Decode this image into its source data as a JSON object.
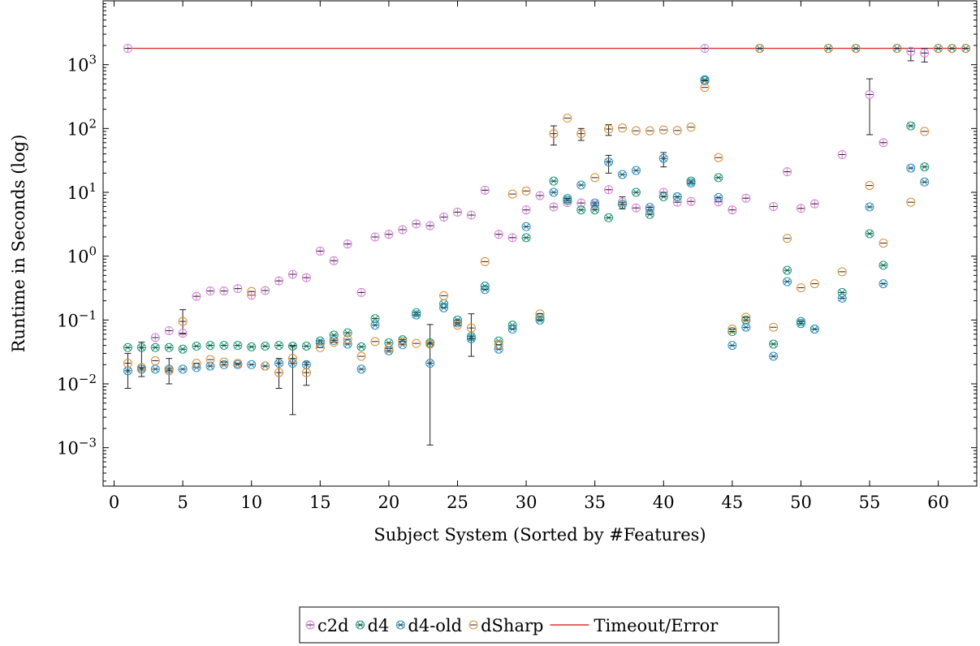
{
  "chart_data": {
    "type": "scatter",
    "xlabel": "Subject System (Sorted by #Features)",
    "ylabel": "Runtime in Seconds (log)",
    "y_scale": "log",
    "xlim": [
      -0.8,
      62.8
    ],
    "ylim": [
      0.00025,
      10000
    ],
    "x_ticks": [
      0,
      5,
      10,
      15,
      20,
      25,
      30,
      35,
      40,
      45,
      50,
      55,
      60
    ],
    "x_tick_labels": [
      "0",
      "5",
      "10",
      "15",
      "20",
      "25",
      "30",
      "35",
      "40",
      "45",
      "50",
      "55",
      "60"
    ],
    "y_ticks": [
      0.001,
      0.01,
      0.1,
      1,
      10,
      100,
      1000
    ],
    "y_tick_labels": [
      [
        "10",
        "−3"
      ],
      [
        "10",
        "−2"
      ],
      [
        "10",
        "−1"
      ],
      [
        "10",
        "0"
      ],
      [
        "10",
        "1"
      ],
      [
        "10",
        "2"
      ],
      [
        "10",
        "3"
      ]
    ],
    "legend": {
      "placement": "below"
    },
    "colors": {
      "c2d": "#d580d6",
      "d4": "#1a9a78",
      "d4-old": "#2a8fc0",
      "dSharp": "#e08a2e",
      "timeout": "#e03030",
      "errorbar": "#000000"
    },
    "timeout": {
      "name": "Timeout/Error",
      "value": 1800
    },
    "series": [
      {
        "name": "c2d",
        "marker": "oplus",
        "points": [
          [
            1,
            1800
          ],
          [
            3,
            0.053
          ],
          [
            4,
            0.068
          ],
          [
            5,
            0.062
          ],
          [
            6,
            0.235
          ],
          [
            7,
            0.285
          ],
          [
            8,
            0.285
          ],
          [
            9,
            0.31
          ],
          [
            10,
            0.245
          ],
          [
            11,
            0.29
          ],
          [
            12,
            0.41
          ],
          [
            13,
            0.52
          ],
          [
            14,
            0.46
          ],
          [
            15,
            1.2
          ],
          [
            16,
            0.85
          ],
          [
            17,
            1.55
          ],
          [
            18,
            0.27
          ],
          [
            19,
            2.0
          ],
          [
            20,
            2.2
          ],
          [
            21,
            2.6
          ],
          [
            22,
            3.2
          ],
          [
            23,
            3.0
          ],
          [
            24,
            4.1
          ],
          [
            25,
            4.9
          ],
          [
            26,
            4.4
          ],
          [
            27,
            10.8
          ],
          [
            28,
            2.2
          ],
          [
            29,
            1.95
          ],
          [
            30,
            5.3
          ],
          [
            31,
            8.9
          ],
          [
            32,
            5.9
          ],
          [
            33,
            6.9
          ],
          [
            34,
            6.8
          ],
          [
            35,
            6.3
          ],
          [
            36,
            11
          ],
          [
            37,
            7.0
          ],
          [
            38,
            5.7
          ],
          [
            39,
            5.3
          ],
          [
            40,
            10
          ],
          [
            41,
            7.0
          ],
          [
            42,
            7.2
          ],
          [
            43,
            1800
          ],
          [
            44,
            7.1
          ],
          [
            45,
            5.3
          ],
          [
            46,
            8.1
          ],
          [
            48,
            6.0
          ],
          [
            49,
            21
          ],
          [
            50,
            5.6
          ],
          [
            51,
            6.6
          ],
          [
            53,
            39
          ],
          [
            55,
            340
          ],
          [
            56,
            60
          ],
          [
            58,
            1620
          ],
          [
            59,
            1520
          ]
        ],
        "errors": [
          [
            55,
            80,
            600
          ],
          [
            58,
            1150,
            1800
          ],
          [
            59,
            1100,
            1800
          ]
        ]
      },
      {
        "name": "d4",
        "marker": "otimes",
        "points": [
          [
            1,
            0.037
          ],
          [
            2,
            0.037
          ],
          [
            3,
            0.037
          ],
          [
            4,
            0.037
          ],
          [
            5,
            0.035
          ],
          [
            6,
            0.039
          ],
          [
            7,
            0.04
          ],
          [
            8,
            0.04
          ],
          [
            9,
            0.04
          ],
          [
            10,
            0.038
          ],
          [
            11,
            0.039
          ],
          [
            12,
            0.04
          ],
          [
            13,
            0.039
          ],
          [
            14,
            0.039
          ],
          [
            15,
            0.047
          ],
          [
            16,
            0.058
          ],
          [
            17,
            0.063
          ],
          [
            18,
            0.038
          ],
          [
            19,
            0.105
          ],
          [
            20,
            0.044
          ],
          [
            21,
            0.049
          ],
          [
            22,
            0.13
          ],
          [
            23,
            0.044
          ],
          [
            24,
            0.18
          ],
          [
            25,
            0.1
          ],
          [
            26,
            0.055
          ],
          [
            27,
            0.34
          ],
          [
            28,
            0.047
          ],
          [
            29,
            0.083
          ],
          [
            30,
            1.95
          ],
          [
            31,
            0.11
          ],
          [
            32,
            15
          ],
          [
            33,
            7.5
          ],
          [
            34,
            5.3
          ],
          [
            35,
            5.3
          ],
          [
            36,
            4.0
          ],
          [
            37,
            6.5
          ],
          [
            38,
            10
          ],
          [
            39,
            4.5
          ],
          [
            40,
            8.5
          ],
          [
            41,
            8.5
          ],
          [
            42,
            15
          ],
          [
            43,
            580
          ],
          [
            44,
            17
          ],
          [
            45,
            0.066
          ],
          [
            46,
            0.1
          ],
          [
            47,
            1800
          ],
          [
            48,
            0.042
          ],
          [
            49,
            0.6
          ],
          [
            50,
            0.088
          ],
          [
            51,
            0.072
          ],
          [
            52,
            1800
          ],
          [
            53,
            0.27
          ],
          [
            54,
            1800
          ],
          [
            55,
            2.25
          ],
          [
            56,
            0.72
          ],
          [
            57,
            1800
          ],
          [
            58,
            110
          ],
          [
            59,
            25
          ],
          [
            60,
            1800
          ],
          [
            61,
            1800
          ],
          [
            62,
            1800
          ]
        ],
        "errors": [
          [
            23,
            0.0011,
            0.085
          ],
          [
            37,
            5.5,
            8.5
          ]
        ]
      },
      {
        "name": "d4-old",
        "marker": "otimes",
        "points": [
          [
            1,
            0.016
          ],
          [
            2,
            0.017
          ],
          [
            3,
            0.017
          ],
          [
            4,
            0.017
          ],
          [
            5,
            0.017
          ],
          [
            6,
            0.018
          ],
          [
            7,
            0.019
          ],
          [
            8,
            0.02
          ],
          [
            9,
            0.02
          ],
          [
            10,
            0.02
          ],
          [
            11,
            0.019
          ],
          [
            12,
            0.021
          ],
          [
            13,
            0.021
          ],
          [
            14,
            0.02
          ],
          [
            15,
            0.043
          ],
          [
            16,
            0.048
          ],
          [
            17,
            0.042
          ],
          [
            18,
            0.017
          ],
          [
            19,
            0.083
          ],
          [
            20,
            0.033
          ],
          [
            21,
            0.041
          ],
          [
            22,
            0.12
          ],
          [
            23,
            0.021
          ],
          [
            24,
            0.155
          ],
          [
            25,
            0.09
          ],
          [
            26,
            0.051
          ],
          [
            27,
            0.3
          ],
          [
            28,
            0.035
          ],
          [
            29,
            0.072
          ],
          [
            30,
            2.9
          ],
          [
            31,
            0.1
          ],
          [
            32,
            10
          ],
          [
            33,
            8.0
          ],
          [
            34,
            13
          ],
          [
            35,
            6.8
          ],
          [
            36,
            30
          ],
          [
            37,
            19
          ],
          [
            38,
            22
          ],
          [
            39,
            5.8
          ],
          [
            40,
            34
          ],
          [
            41,
            8.5
          ],
          [
            42,
            14
          ],
          [
            43,
            560
          ],
          [
            44,
            8.3
          ],
          [
            45,
            0.04
          ],
          [
            46,
            0.077
          ],
          [
            47,
            1800
          ],
          [
            48,
            0.027
          ],
          [
            49,
            0.4
          ],
          [
            50,
            0.095
          ],
          [
            51,
            0.072
          ],
          [
            52,
            1800
          ],
          [
            53,
            0.22
          ],
          [
            54,
            1800
          ],
          [
            55,
            5.9
          ],
          [
            56,
            0.37
          ],
          [
            57,
            1800
          ],
          [
            58,
            24
          ],
          [
            59,
            14.5
          ],
          [
            60,
            1800
          ],
          [
            61,
            1800
          ],
          [
            62,
            1800
          ]
        ],
        "errors": [
          [
            36,
            20,
            38
          ],
          [
            40,
            25,
            42
          ]
        ]
      },
      {
        "name": "dSharp",
        "marker": "circle",
        "points": [
          [
            1,
            0.021
          ],
          [
            2,
            0.018
          ],
          [
            3,
            0.023
          ],
          [
            4,
            0.016
          ],
          [
            5,
            0.095
          ],
          [
            6,
            0.021
          ],
          [
            7,
            0.024
          ],
          [
            8,
            0.022
          ],
          [
            9,
            0.021
          ],
          [
            10,
            0.28
          ],
          [
            11,
            0.019
          ],
          [
            12,
            0.015
          ],
          [
            13,
            0.025
          ],
          [
            14,
            0.015
          ],
          [
            15,
            0.037
          ],
          [
            16,
            0.045
          ],
          [
            17,
            0.05
          ],
          [
            18,
            0.027
          ],
          [
            19,
            0.046
          ],
          [
            20,
            0.036
          ],
          [
            21,
            0.046
          ],
          [
            22,
            0.043
          ],
          [
            23,
            0.042
          ],
          [
            24,
            0.24
          ],
          [
            25,
            0.083
          ],
          [
            26,
            0.075
          ],
          [
            27,
            0.82
          ],
          [
            28,
            0.041
          ],
          [
            29,
            9.4
          ],
          [
            30,
            10.5
          ],
          [
            31,
            0.125
          ],
          [
            32,
            83
          ],
          [
            33,
            145
          ],
          [
            34,
            83
          ],
          [
            35,
            17
          ],
          [
            36,
            98
          ],
          [
            37,
            102
          ],
          [
            38,
            92
          ],
          [
            39,
            92
          ],
          [
            40,
            95
          ],
          [
            41,
            93
          ],
          [
            42,
            105
          ],
          [
            43,
            440
          ],
          [
            44,
            35
          ],
          [
            45,
            0.072
          ],
          [
            46,
            0.11
          ],
          [
            47,
            1800
          ],
          [
            48,
            0.077
          ],
          [
            49,
            1.9
          ],
          [
            50,
            0.32
          ],
          [
            51,
            0.37
          ],
          [
            52,
            1800
          ],
          [
            53,
            0.57
          ],
          [
            54,
            1800
          ],
          [
            55,
            12.8
          ],
          [
            56,
            1.6
          ],
          [
            57,
            1800
          ],
          [
            58,
            7.0
          ],
          [
            59,
            90
          ],
          [
            60,
            1800
          ],
          [
            61,
            1800
          ],
          [
            62,
            1800
          ]
        ],
        "errors": [
          [
            1,
            0.0085,
            0.03
          ],
          [
            2,
            0.013,
            0.045
          ],
          [
            4,
            0.01,
            0.025
          ],
          [
            5,
            0.06,
            0.145
          ],
          [
            12,
            0.0085,
            0.025
          ],
          [
            13,
            0.0033,
            0.04
          ],
          [
            14,
            0.0095,
            0.022
          ],
          [
            26,
            0.027,
            0.125
          ],
          [
            32,
            55,
            110
          ],
          [
            34,
            65,
            100
          ],
          [
            36,
            78,
            115
          ]
        ]
      }
    ]
  }
}
